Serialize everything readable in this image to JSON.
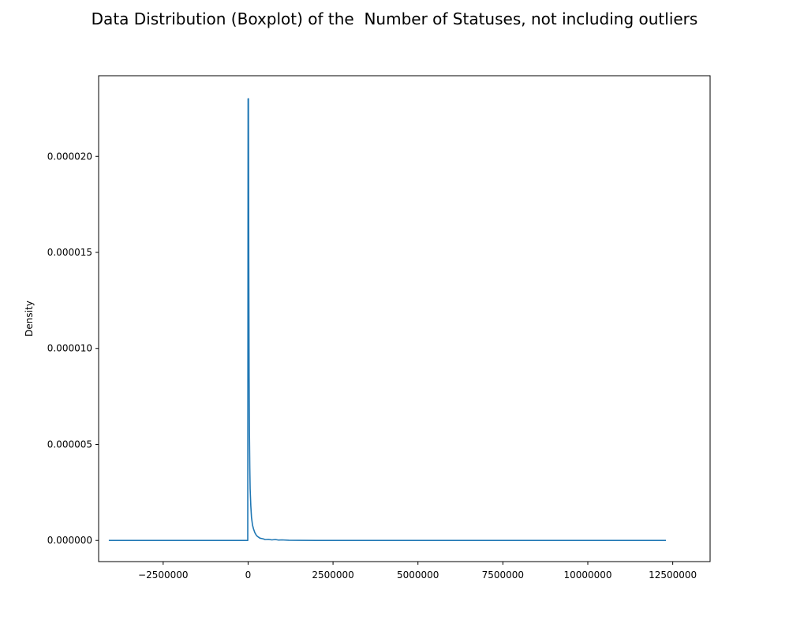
{
  "chart_data": {
    "type": "line",
    "title": "Data Distribution (Boxplot) of the  Number of Statuses, not including outliers",
    "xlabel": "",
    "ylabel": "Density",
    "xlim": [
      -4400000,
      13600000
    ],
    "ylim": [
      -1.1e-06,
      2.42e-05
    ],
    "x_ticks": [
      {
        "value": -2500000,
        "label": "−2500000"
      },
      {
        "value": 0,
        "label": "0"
      },
      {
        "value": 2500000,
        "label": "2500000"
      },
      {
        "value": 5000000,
        "label": "5000000"
      },
      {
        "value": 7500000,
        "label": "7500000"
      },
      {
        "value": 10000000,
        "label": "10000000"
      },
      {
        "value": 12500000,
        "label": "12500000"
      }
    ],
    "y_ticks": [
      {
        "value": 0,
        "label": "0.000000"
      },
      {
        "value": 5e-06,
        "label": "0.000005"
      },
      {
        "value": 1e-05,
        "label": "0.000010"
      },
      {
        "value": 1.5e-05,
        "label": "0.000015"
      },
      {
        "value": 2e-05,
        "label": "0.000020"
      }
    ],
    "grid": false,
    "legend": "none",
    "series": [
      {
        "color": "#1f77b4",
        "x": [
          -4100000,
          -500000,
          -100000,
          -50000,
          -10000,
          0,
          10000,
          20000,
          30000,
          40000,
          50000,
          60000,
          80000,
          100000,
          130000,
          160000,
          200000,
          250000,
          300000,
          350000,
          400000,
          450000,
          500000,
          600000,
          700000,
          800000,
          900000,
          1000000,
          1200000,
          1500000,
          2000000,
          3000000,
          5000000,
          8000000,
          12300000
        ],
        "y": [
          0,
          0,
          0,
          0,
          0,
          2.3e-05,
          2.3e-05,
          1.45e-05,
          8.5e-06,
          5.5e-06,
          3.8e-06,
          2.7e-06,
          1.8e-06,
          1.2e-06,
          8e-07,
          6e-07,
          4e-07,
          2.5e-07,
          1.8e-07,
          1.2e-07,
          1e-07,
          8e-08,
          5e-08,
          6e-08,
          3e-08,
          5e-08,
          2e-08,
          3e-08,
          1e-08,
          5e-09,
          3e-09,
          1e-09,
          0,
          0,
          0
        ]
      }
    ]
  }
}
